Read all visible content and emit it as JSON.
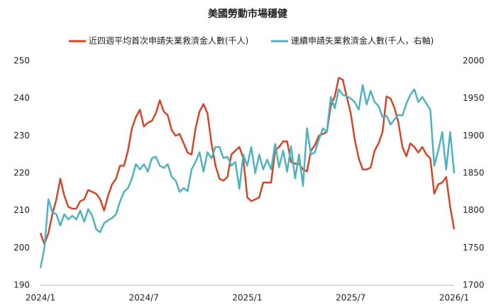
{
  "chart_data": {
    "type": "line",
    "title": "美國勞動市場穩健",
    "categories": [
      "2024/1",
      null,
      null,
      null,
      null,
      null,
      null,
      null,
      null,
      null,
      null,
      null,
      null,
      null,
      null,
      null,
      null,
      null,
      null,
      null,
      null,
      null,
      null,
      null,
      null,
      null,
      "2024/7",
      null,
      null,
      null,
      null,
      null,
      null,
      null,
      null,
      null,
      null,
      null,
      null,
      null,
      null,
      null,
      null,
      null,
      null,
      null,
      null,
      null,
      null,
      null,
      null,
      null,
      "2025/1",
      null,
      null,
      null,
      null,
      null,
      null,
      null,
      null,
      null,
      null,
      null,
      null,
      null,
      null,
      null,
      null,
      null,
      null,
      null,
      null,
      null,
      null,
      null,
      null,
      null,
      "2025/7",
      null,
      null,
      null,
      null,
      null,
      null,
      null,
      null,
      null,
      null,
      null,
      null,
      null,
      null,
      null,
      null,
      null,
      null,
      null,
      null,
      null,
      null,
      null,
      null,
      null,
      "2026/1"
    ],
    "series": [
      {
        "name": "近四週平均首次申請失業救濟金人數(千人)",
        "color": "#d2462a",
        "values": [
          204,
          201,
          204,
          209,
          213,
          218.5,
          214,
          211,
          210.5,
          210.5,
          212.5,
          213,
          215.5,
          215,
          214.5,
          213,
          210,
          214,
          217,
          218.5,
          222,
          222,
          226,
          232,
          235,
          237,
          232.5,
          233.5,
          234,
          236,
          239.5,
          236.5,
          235.5,
          231.5,
          230,
          230.5,
          228,
          225.5,
          225,
          232,
          236.5,
          238.5,
          236,
          228,
          222,
          218.5,
          218,
          219,
          225,
          226,
          227,
          224,
          213.5,
          212.5,
          213,
          213.5,
          217.5,
          217.5,
          217.5,
          226,
          227,
          228.5,
          228.5,
          223,
          222.5,
          222.5,
          221,
          220.5,
          226,
          227.5,
          230,
          230.5,
          231,
          238,
          240.5,
          245.5,
          245,
          240.5,
          236,
          229,
          224,
          221,
          221,
          221.5,
          226,
          228,
          231,
          240.5,
          240,
          237.5,
          233.5,
          227,
          224.5,
          228,
          227,
          225.5,
          227,
          225,
          224,
          214.5,
          217,
          217.5,
          219,
          211,
          205
        ]
      },
      {
        "name": "連續申請失業救濟金人數(千人，右軸)",
        "color": "#4fb3bf",
        "axis": "y2",
        "values": [
          1723,
          1750,
          1815,
          1798,
          1795,
          1780,
          1795,
          1788,
          1793,
          1788,
          1800,
          1785,
          1802,
          1793,
          1775,
          1771,
          1783,
          1787,
          1790,
          1795,
          1812,
          1825,
          1830,
          1843,
          1862,
          1855,
          1862,
          1852,
          1870,
          1872,
          1860,
          1857,
          1862,
          1845,
          1840,
          1825,
          1830,
          1826,
          1855,
          1865,
          1878,
          1852,
          1878,
          1870,
          1885,
          1885,
          1870,
          1872,
          1860,
          1865,
          1829,
          1875,
          1860,
          1885,
          1850,
          1875,
          1855,
          1868,
          1855,
          1889,
          1858,
          1880,
          1852,
          1886,
          1843,
          1875,
          1833,
          1910,
          1875,
          1878,
          1895,
          1910,
          1905,
          1952,
          1937,
          1962,
          1955,
          1953,
          1950,
          1945,
          1935,
          1968,
          1942,
          1960,
          1945,
          1940,
          1925,
          1927,
          1915,
          1922,
          1928,
          1927,
          1943,
          1955,
          1962,
          1945,
          1952,
          1943,
          1935,
          1860,
          1880,
          1905,
          1855,
          1905,
          1850
        ]
      }
    ],
    "ylim": [
      190,
      250
    ],
    "yticks": [
      190,
      200,
      210,
      220,
      230,
      240,
      250
    ],
    "y2lim": [
      1700,
      2000
    ],
    "y2ticks": [
      1700,
      1750,
      1800,
      1850,
      1900,
      1950,
      2000
    ]
  }
}
